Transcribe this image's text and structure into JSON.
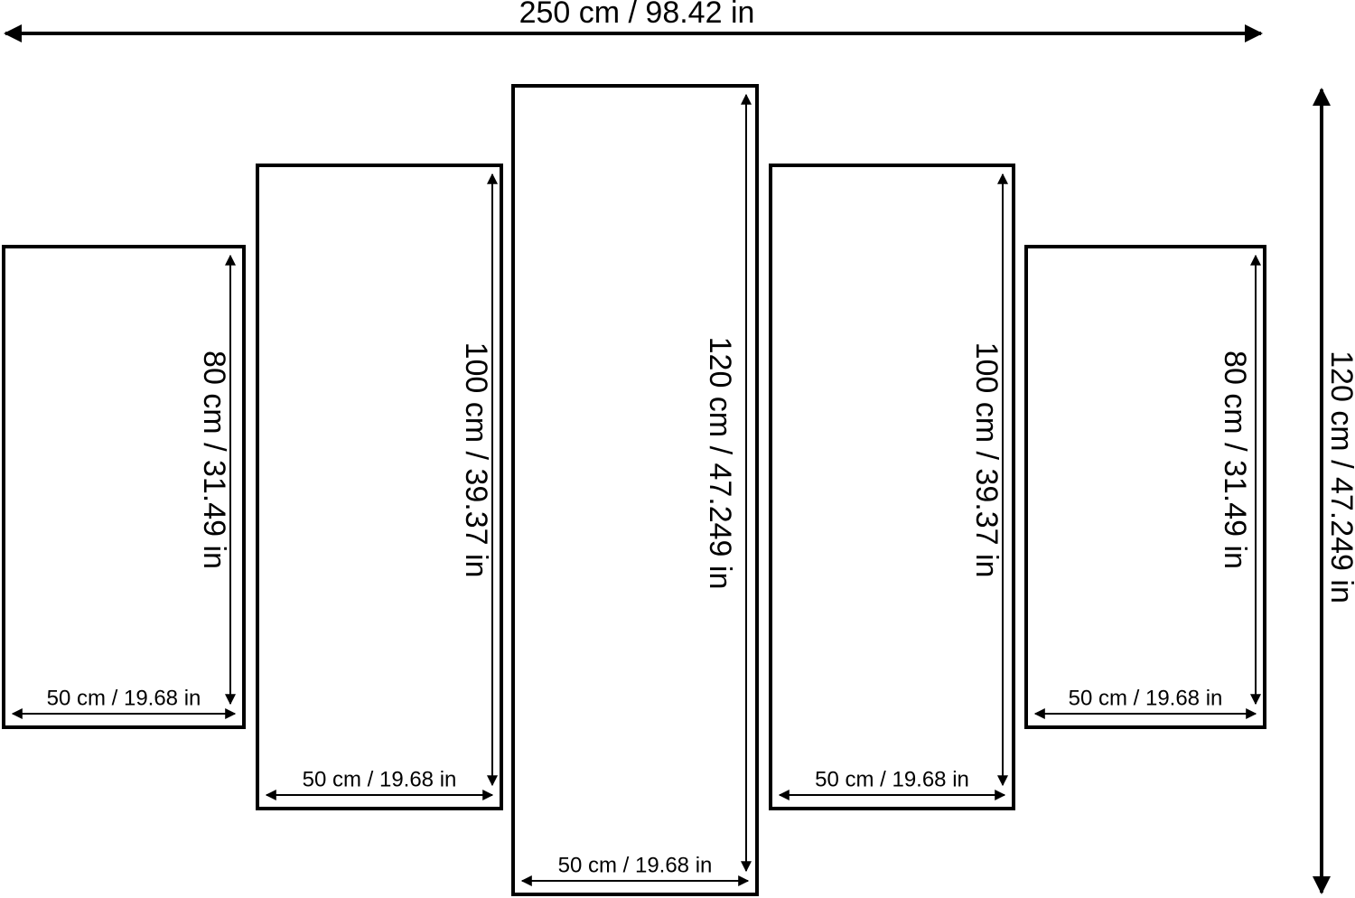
{
  "total_width": "250 cm / 98.42 in",
  "total_height": "120 cm / 47.249 in",
  "panels": [
    {
      "width": "50 cm / 19.68 in",
      "height": "80 cm / 31.49 in"
    },
    {
      "width": "50 cm / 19.68 in",
      "height": "100 cm / 39.37 in"
    },
    {
      "width": "50 cm / 19.68 in",
      "height": "120 cm / 47.249 in"
    },
    {
      "width": "50 cm / 19.68 in",
      "height": "100 cm / 39.37 in"
    },
    {
      "width": "50 cm / 19.68 in",
      "height": "80 cm / 31.49 in"
    }
  ]
}
